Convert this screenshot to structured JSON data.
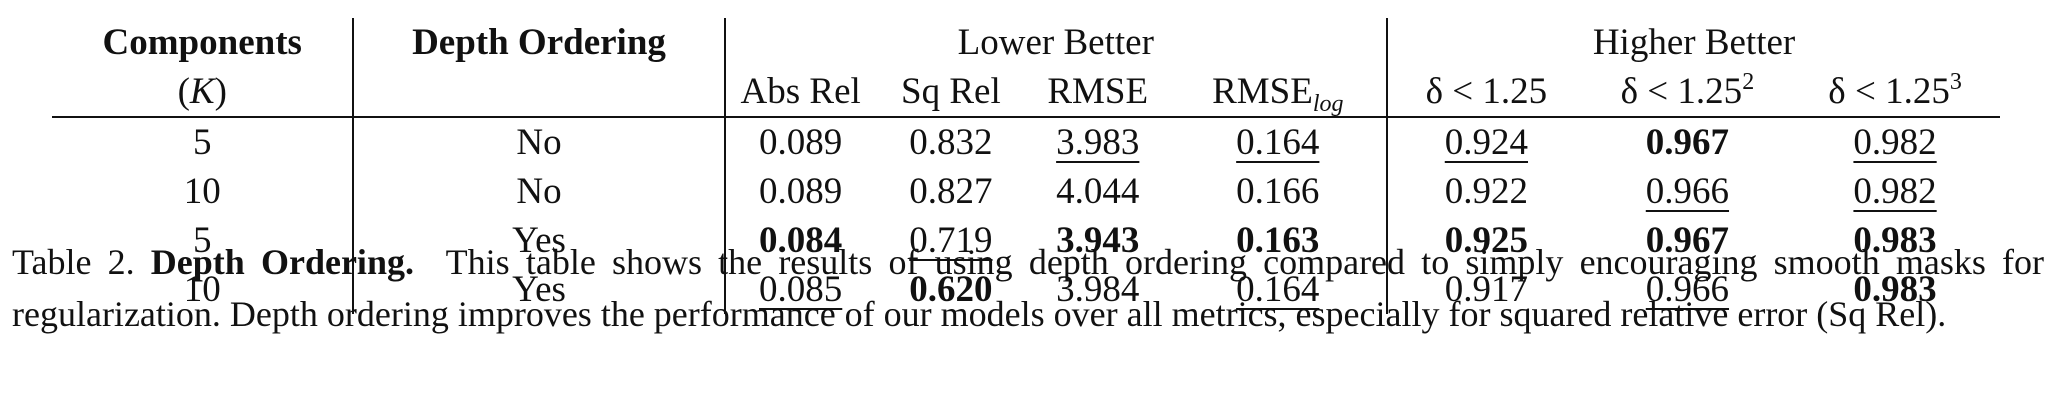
{
  "table": {
    "headers": {
      "components": "Components",
      "components_sub": "(K)",
      "depth_ordering": "Depth Ordering",
      "lower_better": "Lower Better",
      "higher_better": "Higher Better",
      "abs_rel": "Abs Rel",
      "sq_rel": "Sq Rel",
      "rmse": "RMSE",
      "rmse_log_base": "RMSE",
      "rmse_log_sub": "log",
      "delta1": "δ < 1.25",
      "delta2_base": "δ < 1.25",
      "delta2_exp": "2",
      "delta3_base": "δ < 1.25",
      "delta3_exp": "3"
    },
    "rows": [
      {
        "components": "5",
        "depth": "No",
        "abs_rel": "0.089",
        "sq_rel": "0.832",
        "rmse": "3.983",
        "rmse_log": "0.164",
        "d1": "0.924",
        "d2": "0.967",
        "d3": "0.982"
      },
      {
        "components": "10",
        "depth": "No",
        "abs_rel": "0.089",
        "sq_rel": "0.827",
        "rmse": "4.044",
        "rmse_log": "0.166",
        "d1": "0.922",
        "d2": "0.966",
        "d3": "0.982"
      },
      {
        "components": "5",
        "depth": "Yes",
        "abs_rel": "0.084",
        "sq_rel": "0.719",
        "rmse": "3.943",
        "rmse_log": "0.163",
        "d1": "0.925",
        "d2": "0.967",
        "d3": "0.983"
      },
      {
        "components": "10",
        "depth": "Yes",
        "abs_rel": "0.085",
        "sq_rel": "0.620",
        "rmse": "3.984",
        "rmse_log": "0.164",
        "d1": "0.917",
        "d2": "0.966",
        "d3": "0.983"
      }
    ]
  },
  "caption": {
    "label": "Table 2.",
    "title": "Depth Ordering.",
    "text": "This table shows the results of using depth ordering compared to simply encouraging smooth masks for regularization. Depth ordering improves the performance of our models over all metrics, especially for squared relative error (Sq Rel)."
  }
}
